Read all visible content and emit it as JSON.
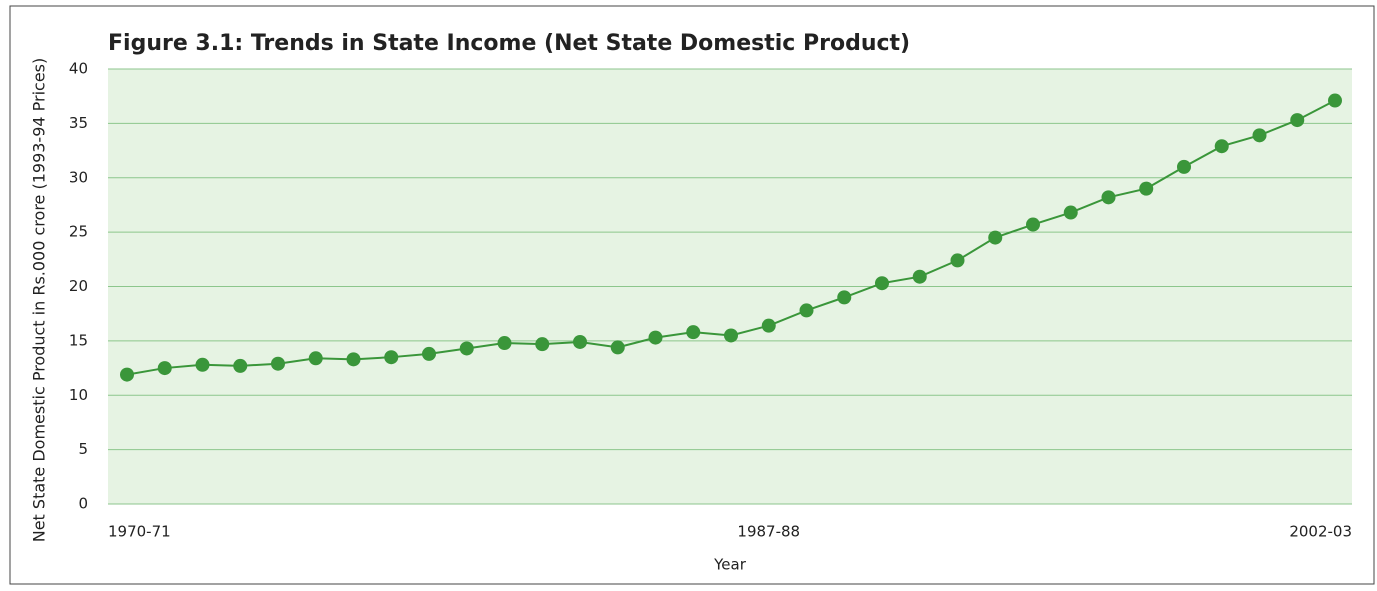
{
  "chart_data": {
    "type": "line",
    "title": "Figure 3.1: Trends in State Income (Net State Domestic Product)",
    "x_label": "Year",
    "y_label": "Net State Domestic Product in Rs.000 crore (1993-94 Prices)",
    "categories": [
      "1970-71",
      null,
      null,
      null,
      null,
      null,
      null,
      null,
      null,
      null,
      null,
      null,
      null,
      null,
      null,
      null,
      null,
      "1987-88",
      null,
      null,
      null,
      null,
      null,
      null,
      null,
      null,
      null,
      null,
      null,
      null,
      null,
      null,
      "2002-03"
    ],
    "series": [
      {
        "name": "Net State Domestic Product",
        "color": "#3a963a",
        "values": [
          11.9,
          12.5,
          12.8,
          12.7,
          12.9,
          13.4,
          13.3,
          13.5,
          13.8,
          14.3,
          14.8,
          14.7,
          14.9,
          14.4,
          15.3,
          15.8,
          15.5,
          16.4,
          17.8,
          19.0,
          20.3,
          20.9,
          22.4,
          24.5,
          25.7,
          26.8,
          28.2,
          29.0,
          31.0,
          32.9,
          33.9,
          35.3,
          37.1
        ]
      }
    ],
    "ylim": [
      0,
      40
    ],
    "yticks": [
      0,
      5,
      10,
      15,
      20,
      25,
      30,
      35,
      40
    ],
    "grid": true,
    "background": "#e6f3e3",
    "grid_color": "#8cc68c"
  }
}
